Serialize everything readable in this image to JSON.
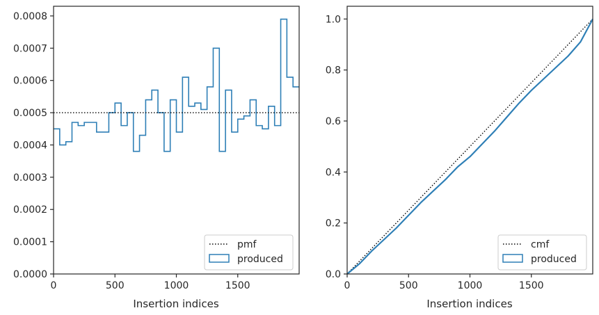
{
  "colors": {
    "produced": "#2e7fb6",
    "reference": "#000000",
    "frame": "#262626"
  },
  "chart_data": [
    {
      "type": "histogram-step",
      "xlabel": "Insertion indices",
      "ylabel": "",
      "xlim": [
        0,
        2000
      ],
      "ylim": [
        0,
        0.00083
      ],
      "xticks": [
        {
          "value": 0,
          "label": "0"
        },
        {
          "value": 500,
          "label": "500"
        },
        {
          "value": 1000,
          "label": "1000"
        },
        {
          "value": 1500,
          "label": "1500"
        }
      ],
      "yticks": [
        {
          "value": 0.0,
          "label": "0.0000"
        },
        {
          "value": 0.0001,
          "label": "0.0001"
        },
        {
          "value": 0.0002,
          "label": "0.0002"
        },
        {
          "value": 0.0003,
          "label": "0.0003"
        },
        {
          "value": 0.0004,
          "label": "0.0004"
        },
        {
          "value": 0.0005,
          "label": "0.0005"
        },
        {
          "value": 0.0006,
          "label": "0.0006"
        },
        {
          "value": 0.0007,
          "label": "0.0007"
        },
        {
          "value": 0.0008,
          "label": "0.0008"
        }
      ],
      "bin_edges": [
        0,
        50,
        100,
        150,
        200,
        250,
        300,
        350,
        400,
        450,
        500,
        550,
        600,
        650,
        700,
        750,
        800,
        850,
        900,
        950,
        1000,
        1050,
        1100,
        1150,
        1200,
        1250,
        1300,
        1350,
        1400,
        1450,
        1500,
        1550,
        1600,
        1650,
        1700,
        1750,
        1800,
        1850,
        1900,
        1950,
        2000
      ],
      "values": [
        0.00045,
        0.0004,
        0.00041,
        0.00047,
        0.00046,
        0.00047,
        0.00047,
        0.00044,
        0.00044,
        0.0005,
        0.00053,
        0.00046,
        0.0005,
        0.00038,
        0.00043,
        0.00054,
        0.00057,
        0.0005,
        0.00038,
        0.00054,
        0.00044,
        0.00061,
        0.00052,
        0.00053,
        0.00051,
        0.00058,
        0.0007,
        0.00038,
        0.00057,
        0.00044,
        0.00048,
        0.00049,
        0.00054,
        0.00046,
        0.00045,
        0.00052,
        0.00046,
        0.00079,
        0.00061,
        0.00058
      ],
      "reference": {
        "name": "pmf",
        "value": 0.0005,
        "style": "dotted"
      },
      "series_name": "produced",
      "legend": {
        "position": "lower-right",
        "items": [
          "pmf",
          "produced"
        ]
      },
      "grid": false
    },
    {
      "type": "line",
      "xlabel": "Insertion indices",
      "ylabel": "",
      "xlim": [
        0,
        2000
      ],
      "ylim": [
        0,
        1.05
      ],
      "xticks": [
        {
          "value": 0,
          "label": "0"
        },
        {
          "value": 500,
          "label": "500"
        },
        {
          "value": 1000,
          "label": "1000"
        },
        {
          "value": 1500,
          "label": "1500"
        }
      ],
      "yticks": [
        {
          "value": 0.0,
          "label": "0.0"
        },
        {
          "value": 0.2,
          "label": "0.2"
        },
        {
          "value": 0.4,
          "label": "0.4"
        },
        {
          "value": 0.6,
          "label": "0.6"
        },
        {
          "value": 0.8,
          "label": "0.8"
        },
        {
          "value": 1.0,
          "label": "1.0"
        }
      ],
      "series_name": "produced",
      "x": [
        0,
        100,
        200,
        300,
        400,
        500,
        600,
        700,
        800,
        900,
        1000,
        1100,
        1200,
        1300,
        1400,
        1500,
        1600,
        1700,
        1800,
        1900,
        2000
      ],
      "y": [
        0,
        0.04,
        0.09,
        0.135,
        0.18,
        0.23,
        0.28,
        0.325,
        0.37,
        0.42,
        0.46,
        0.51,
        0.56,
        0.615,
        0.67,
        0.72,
        0.765,
        0.81,
        0.855,
        0.91,
        1.0
      ],
      "reference": {
        "name": "cmf",
        "x": [
          0,
          2000
        ],
        "y": [
          0,
          1.0
        ],
        "style": "dotted"
      },
      "legend": {
        "position": "lower-right",
        "items": [
          "cmf",
          "produced"
        ]
      },
      "grid": false
    }
  ]
}
